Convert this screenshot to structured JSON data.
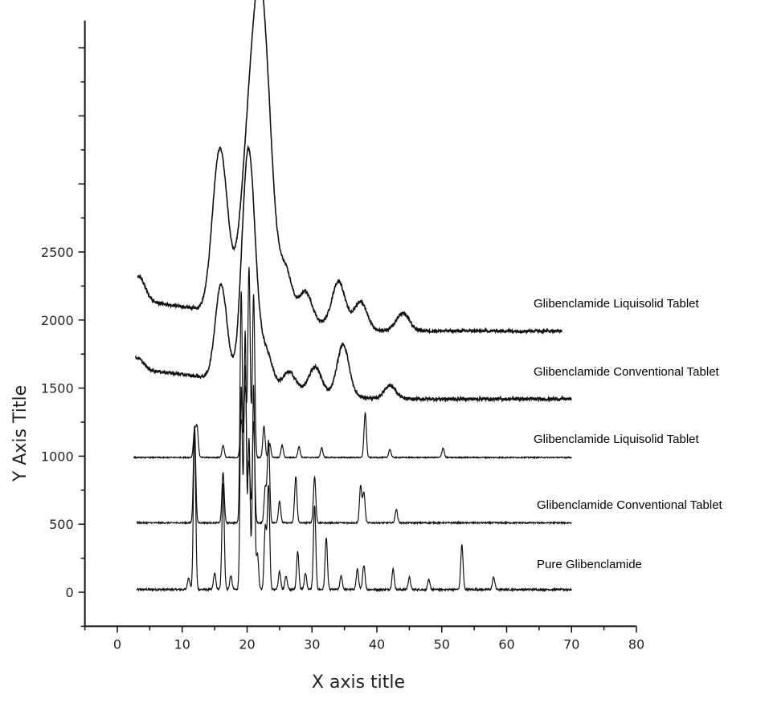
{
  "chart_data": {
    "type": "line",
    "title": "",
    "xlabel": "X axis title",
    "ylabel": "Y Axis Title",
    "xlim": [
      -5,
      80
    ],
    "ylim": [
      -250,
      4200
    ],
    "x_ticks": [
      0,
      10,
      20,
      30,
      40,
      50,
      60,
      70,
      80
    ],
    "y_ticks": [
      0,
      500,
      1000,
      1500,
      2000,
      2500
    ],
    "grid": false,
    "legend": "labels placed at right end of each trace",
    "series": [
      {
        "name": "Pure Glibenclamide",
        "baseline": 20,
        "peaks": [
          [
            11,
            90
          ],
          [
            11.9,
            1170
          ],
          [
            15,
            120
          ],
          [
            16.3,
            780
          ],
          [
            17.5,
            100
          ],
          [
            19.1,
            1480
          ],
          [
            19.7,
            1900
          ],
          [
            20.3,
            1100
          ],
          [
            21,
            1500
          ],
          [
            21.6,
            260
          ],
          [
            22.8,
            460
          ],
          [
            23.3,
            760
          ],
          [
            25,
            130
          ],
          [
            26,
            100
          ],
          [
            27.8,
            280
          ],
          [
            29,
            120
          ],
          [
            30.4,
            620
          ],
          [
            32.2,
            380
          ],
          [
            34.5,
            100
          ],
          [
            37,
            150
          ],
          [
            38,
            180
          ],
          [
            42.5,
            150
          ],
          [
            45,
            90
          ],
          [
            48,
            70
          ],
          [
            53.1,
            330
          ],
          [
            58,
            90
          ]
        ]
      },
      {
        "name": "Glibenclamide Conventional Tablet",
        "baseline": 510,
        "peaks": [
          [
            11.9,
            710
          ],
          [
            16.3,
            370
          ],
          [
            19.1,
            1700
          ],
          [
            19.7,
            1150
          ],
          [
            20.3,
            450
          ],
          [
            21,
            750
          ],
          [
            22.8,
            260
          ],
          [
            23.3,
            600
          ],
          [
            25,
            160
          ],
          [
            27.5,
            340
          ],
          [
            30.4,
            340
          ],
          [
            37.5,
            270
          ],
          [
            38,
            220
          ],
          [
            43,
            100
          ]
        ]
      },
      {
        "name": "Glibenclamide Liquisolid Tablet",
        "baseline": 990,
        "peaks": [
          [
            11.9,
            200
          ],
          [
            12.3,
            220
          ],
          [
            16.3,
            90
          ],
          [
            19.1,
            270
          ],
          [
            19.7,
            520
          ],
          [
            20.3,
            1400
          ],
          [
            21,
            1200
          ],
          [
            22.6,
            230
          ],
          [
            23.5,
            100
          ],
          [
            25.4,
            90
          ],
          [
            28,
            80
          ],
          [
            31.5,
            70
          ],
          [
            38.2,
            330
          ],
          [
            42,
            60
          ],
          [
            50.2,
            70
          ]
        ]
      },
      {
        "name": "Glibenclamide Conventional Tablet",
        "baseline": 1480,
        "peaks": [
          [
            3.1,
            80
          ],
          [
            16,
            700
          ],
          [
            19.8,
            800
          ],
          [
            20.3,
            700
          ],
          [
            21,
            450
          ],
          [
            23,
            230
          ],
          [
            26.5,
            120
          ],
          [
            30.5,
            180
          ],
          [
            34.8,
            370
          ],
          [
            42,
            100
          ]
        ]
      },
      {
        "name": "Glibenclamide Liquisolid Tablet",
        "baseline": 1980,
        "peaks": [
          [
            3.3,
            180
          ],
          [
            15.3,
            650
          ],
          [
            16.3,
            700
          ],
          [
            20.2,
            960
          ],
          [
            22.3,
            2100
          ],
          [
            26,
            330
          ],
          [
            29,
            220
          ],
          [
            34.1,
            330
          ],
          [
            37.5,
            200
          ],
          [
            44,
            130
          ]
        ]
      }
    ]
  }
}
